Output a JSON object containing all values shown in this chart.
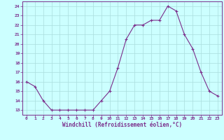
{
  "x": [
    0,
    1,
    2,
    3,
    4,
    5,
    6,
    7,
    8,
    9,
    10,
    11,
    12,
    13,
    14,
    15,
    16,
    17,
    18,
    19,
    20,
    21,
    22,
    23
  ],
  "y": [
    16,
    15.5,
    14,
    13,
    13,
    13,
    13,
    13,
    13,
    14,
    15,
    17.5,
    20.5,
    22,
    22,
    22.5,
    22.5,
    24,
    23.5,
    21,
    19.5,
    17,
    15,
    14.5
  ],
  "line_color": "#7B2D8B",
  "marker_color": "#7B2D8B",
  "bg_color": "#CCFFFF",
  "grid_color": "#AADDDD",
  "xlabel": "Windchill (Refroidissement éolien,°C)",
  "xlabel_color": "#7B2D8B",
  "ylabel_ticks": [
    13,
    14,
    15,
    16,
    17,
    18,
    19,
    20,
    21,
    22,
    23,
    24
  ],
  "xlim": [
    -0.5,
    23.5
  ],
  "ylim": [
    12.5,
    24.5
  ],
  "xticks": [
    0,
    1,
    2,
    3,
    4,
    5,
    6,
    7,
    8,
    9,
    10,
    11,
    12,
    13,
    14,
    15,
    16,
    17,
    18,
    19,
    20,
    21,
    22,
    23
  ],
  "tick_color": "#7B2D8B",
  "spine_color": "#7B2D8B"
}
